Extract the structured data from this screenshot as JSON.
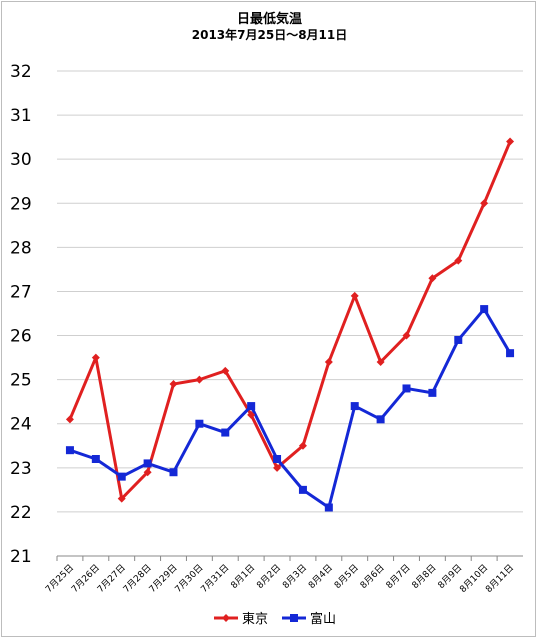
{
  "chart_data": {
    "type": "line",
    "title": "日最低気温",
    "subtitle": "2013年7月25日〜8月11日",
    "xlabel": "",
    "ylabel": "",
    "ylim": [
      21,
      32
    ],
    "yticks": [
      "21",
      "22",
      "23",
      "24",
      "25",
      "26",
      "27",
      "28",
      "29",
      "30",
      "31",
      "32"
    ],
    "grid": true,
    "legend": "bottom",
    "categories": [
      "7月25日",
      "7月26日",
      "7月27日",
      "7月28日",
      "7月29日",
      "7月30日",
      "7月31日",
      "8月1日",
      "8月2日",
      "8月3日",
      "8月4日",
      "8月5日",
      "8月6日",
      "8月7日",
      "8月8日",
      "8月9日",
      "8月10日",
      "8月11日"
    ],
    "series": [
      {
        "name": "東京",
        "color": "#e02020",
        "marker": "diamond",
        "values": [
          24.1,
          25.5,
          22.3,
          22.9,
          24.9,
          25.0,
          25.2,
          24.2,
          23.0,
          23.5,
          25.4,
          26.9,
          25.4,
          26.0,
          27.3,
          27.7,
          29.0,
          30.4
        ]
      },
      {
        "name": "富山",
        "color": "#1428d6",
        "marker": "square",
        "values": [
          23.4,
          23.2,
          22.8,
          23.1,
          22.9,
          24.0,
          23.8,
          24.4,
          23.2,
          22.5,
          22.1,
          24.4,
          24.1,
          24.8,
          24.7,
          25.9,
          26.6,
          25.6
        ]
      }
    ]
  }
}
